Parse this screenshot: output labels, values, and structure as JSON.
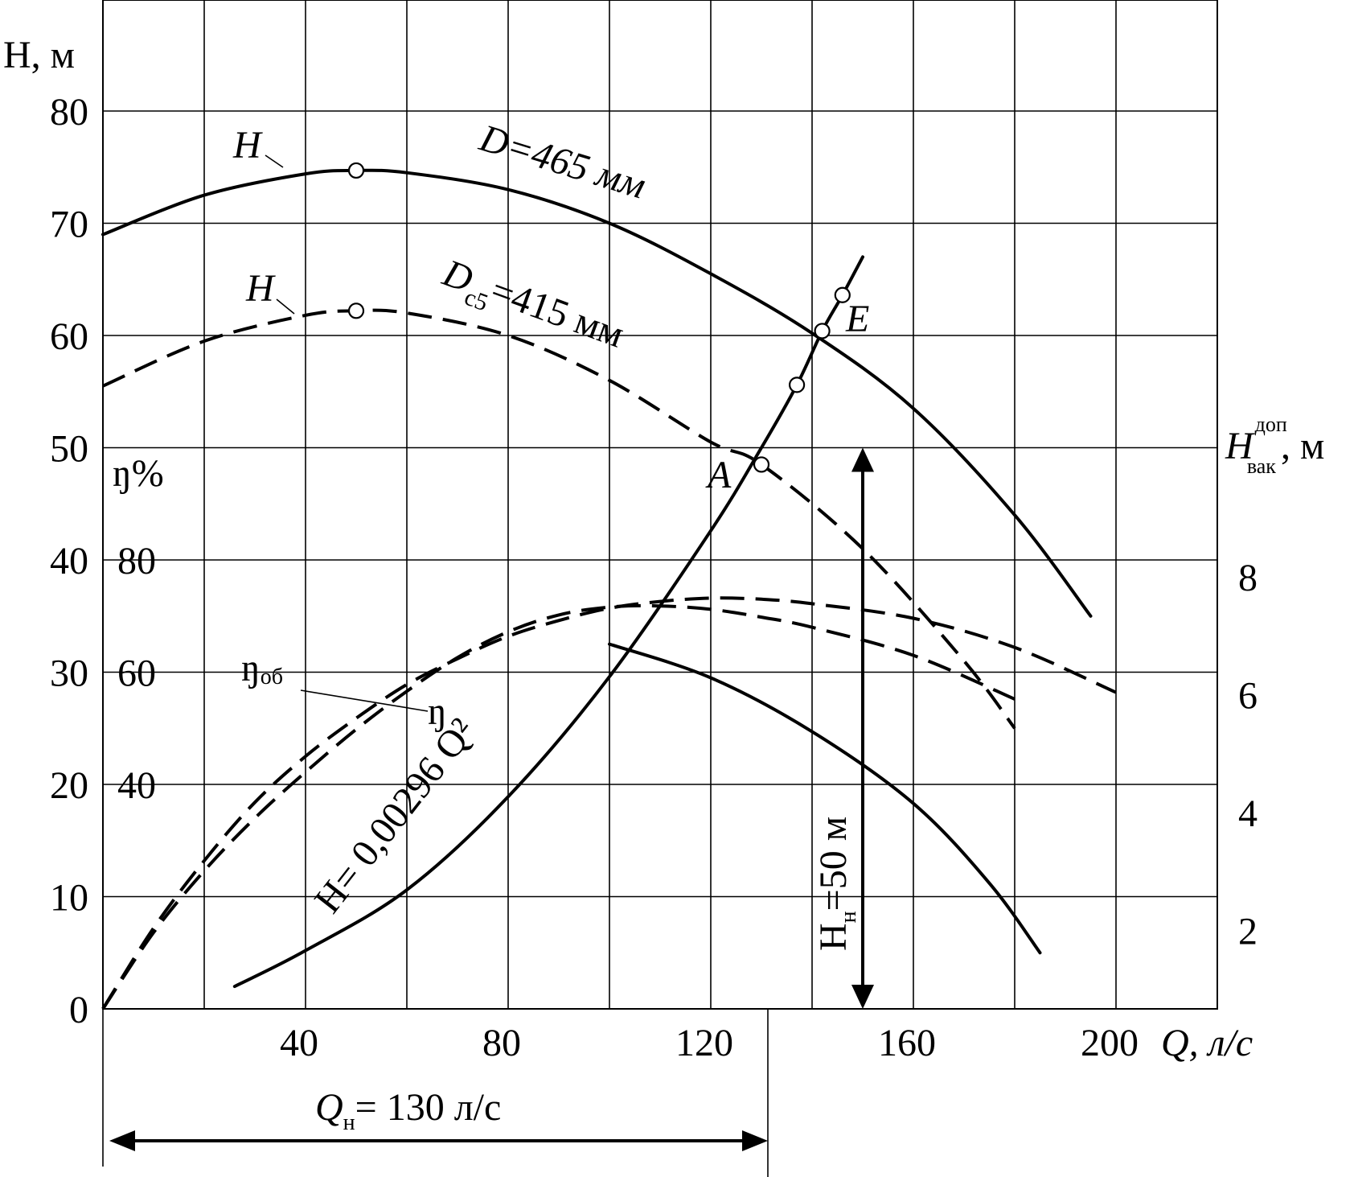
{
  "chart_data": {
    "type": "line",
    "xlabel": "Q, л/с",
    "x_ticks": [
      "40",
      "80",
      "120",
      "160",
      "200"
    ],
    "xlim": [
      0,
      220
    ],
    "ylabel": "H, м",
    "y_ticks": [
      "0",
      "10",
      "20",
      "30",
      "40",
      "50",
      "60",
      "70",
      "80"
    ],
    "ylim": [
      0,
      90
    ],
    "eta_label": "ŋ%",
    "eta_ticks": [
      "40",
      "60",
      "80"
    ],
    "right_axis_label": "H",
    "right_axis_label_sup": "доп",
    "right_axis_label_sub": "вак",
    "right_axis_label_unit": ", м",
    "right_ticks": [
      "2",
      "4",
      "6",
      "8"
    ],
    "grid": true,
    "series": [
      {
        "name": "H",
        "annotation": "D=465 мм",
        "style": "solid",
        "points": [
          [
            0,
            69
          ],
          [
            20,
            72.5
          ],
          [
            40,
            74.4
          ],
          [
            50,
            74.7
          ],
          [
            60,
            74.5
          ],
          [
            80,
            73
          ],
          [
            100,
            70
          ],
          [
            120,
            65.5
          ],
          [
            140,
            60.2
          ],
          [
            160,
            53.5
          ],
          [
            180,
            44
          ],
          [
            195,
            35
          ]
        ]
      },
      {
        "name": "H",
        "annotation_prefix": "D",
        "annotation_sub": "с5",
        "annotation_rest": "=415 мм",
        "style": "dashed",
        "points": [
          [
            0,
            55.5
          ],
          [
            20,
            59.5
          ],
          [
            40,
            61.8
          ],
          [
            50,
            62.2
          ],
          [
            60,
            62
          ],
          [
            80,
            60
          ],
          [
            100,
            56
          ],
          [
            120,
            50.5
          ],
          [
            130,
            48.5
          ],
          [
            150,
            41
          ],
          [
            170,
            31
          ],
          [
            180,
            25
          ]
        ]
      },
      {
        "name": "ŋоб",
        "style": "dashed",
        "points": [
          [
            0,
            0
          ],
          [
            10,
            7.2
          ],
          [
            20,
            13.2
          ],
          [
            30,
            18.4
          ],
          [
            40,
            22.5
          ],
          [
            50,
            25.9
          ],
          [
            60,
            28.9
          ],
          [
            70,
            31.2
          ],
          [
            80,
            33.2
          ],
          [
            90,
            34.6
          ],
          [
            100,
            35.7
          ],
          [
            110,
            36.3
          ],
          [
            120,
            36.6
          ],
          [
            130,
            36.5
          ],
          [
            140,
            36.1
          ],
          [
            160,
            34.8
          ],
          [
            180,
            32.2
          ],
          [
            200,
            28.2
          ]
        ]
      },
      {
        "name": "ŋ",
        "style": "dashed",
        "points": [
          [
            0,
            0
          ],
          [
            10,
            6.8
          ],
          [
            20,
            12.3
          ],
          [
            30,
            17
          ],
          [
            40,
            21.1
          ],
          [
            50,
            24.9
          ],
          [
            60,
            28.3
          ],
          [
            70,
            31.3
          ],
          [
            80,
            33.6
          ],
          [
            90,
            35.1
          ],
          [
            100,
            35.8
          ],
          [
            110,
            35.9
          ],
          [
            120,
            35.6
          ],
          [
            130,
            34.9
          ],
          [
            140,
            34
          ],
          [
            160,
            31.5
          ],
          [
            180,
            27.6
          ]
        ]
      },
      {
        "name": "H= 0,00296 Q²",
        "style": "solid",
        "points": [
          [
            26,
            2
          ],
          [
            40,
            5.2
          ],
          [
            60,
            10.6
          ],
          [
            80,
            18.9
          ],
          [
            100,
            29.6
          ],
          [
            120,
            42.6
          ],
          [
            130,
            50
          ],
          [
            137,
            55.6
          ],
          [
            142,
            60.4
          ],
          [
            146,
            63.6
          ],
          [
            150,
            67
          ]
        ]
      },
      {
        "name": "Hвак доп",
        "style": "solid",
        "points": [
          [
            100,
            32.5
          ],
          [
            120,
            29.5
          ],
          [
            140,
            24.7
          ],
          [
            160,
            18.3
          ],
          [
            175,
            11.2
          ],
          [
            185,
            5
          ]
        ]
      }
    ],
    "markers": [
      [
        50,
        74.7
      ],
      [
        50,
        62.2
      ],
      [
        130,
        48.5
      ],
      [
        137,
        55.6
      ],
      [
        142,
        60.4
      ],
      [
        146,
        63.6
      ]
    ],
    "point_labels": [
      "A",
      "E"
    ],
    "annotations": {
      "pressure_arrow": {
        "label": "H",
        "label_sub": "н",
        "label_rest": "=50 м",
        "x": 150,
        "from": 0,
        "to": 50
      },
      "flow_arrow": {
        "label": "Q",
        "label_sub": "н",
        "label_rest": "= 130 л/с",
        "from": 0,
        "to": 130
      }
    }
  }
}
